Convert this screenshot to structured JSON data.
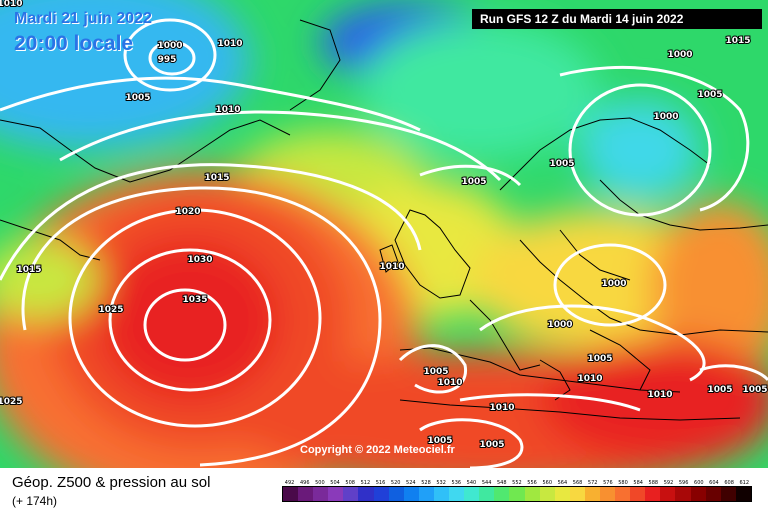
{
  "header": {
    "date": "Mardi 21 juin 2022",
    "time": "20:00 locale",
    "run": "Run GFS 12 Z du Mardi 14 juin 2022"
  },
  "footer": {
    "title": "Géop. Z500 & pression au sol",
    "step": "(+ 174h)",
    "copyright": "Copyright © 2022 Meteociel.fr"
  },
  "isobar_labels": [
    "1010",
    "1000",
    "995",
    "1010",
    "1005",
    "1010",
    "1015",
    "1005",
    "1000",
    "1005",
    "1015",
    "1020",
    "1030",
    "1035",
    "1025",
    "1015",
    "1010",
    "1005",
    "1000",
    "1000",
    "1005",
    "1005",
    "1010",
    "1010",
    "1010",
    "1005",
    "1005",
    "1005",
    "1010",
    "1005",
    "1000",
    "1025"
  ],
  "legend": {
    "values": [
      "492",
      "496",
      "500",
      "504",
      "508",
      "512",
      "516",
      "520",
      "524",
      "528",
      "532",
      "536",
      "540",
      "544",
      "548",
      "552",
      "556",
      "560",
      "564",
      "568",
      "572",
      "576",
      "580",
      "584",
      "588",
      "592",
      "596",
      "600",
      "604",
      "608",
      "612"
    ],
    "colors": [
      "#4a0a4a",
      "#6a1a7a",
      "#7a2a9a",
      "#8a3aba",
      "#6040c8",
      "#3030c8",
      "#2040d8",
      "#1060e0",
      "#1080f0",
      "#20a0f8",
      "#30c0f8",
      "#40d8f0",
      "#40e8d0",
      "#40e8a0",
      "#50e870",
      "#70e850",
      "#a0e840",
      "#c8e840",
      "#e8e840",
      "#f8d840",
      "#f8b030",
      "#f89030",
      "#f87030",
      "#f04828",
      "#e82020",
      "#c81010",
      "#a80808",
      "#880000",
      "#680000",
      "#400000",
      "#100000"
    ]
  }
}
